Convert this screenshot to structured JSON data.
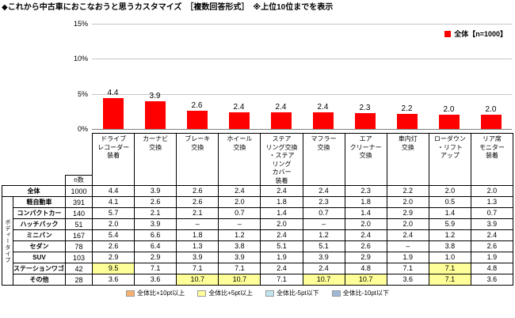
{
  "title": "◆これから中古車におこなおうと思うカスタマイズ　［複数回答形式］　※上位10位までを表示",
  "chart_data": {
    "type": "bar",
    "title": "これから中古車におこなおうと思うカスタマイズ　［複数回答形式］　※上位10位までを表示",
    "categories": [
      "ドライブレコーダー装着",
      "カーナビ交換",
      "ブレーキ交換",
      "ホイール交換",
      "ステアリング交換・ステアリングカバー装着",
      "マフラー交換",
      "エアクリーナー交換",
      "車内灯交換",
      "ローダウン・リフトアップ",
      "リア席モニター装着"
    ],
    "values": [
      4.4,
      3.9,
      2.6,
      2.4,
      2.4,
      2.4,
      2.3,
      2.2,
      2.0,
      2.0
    ],
    "xlabel": "",
    "ylabel": "",
    "ylim": [
      0,
      15
    ],
    "yticks": [
      "15%",
      "10%",
      "5%",
      "0%"
    ],
    "grid": true,
    "legend_label": "全体【n=1000】",
    "legend_position": "top-right",
    "bar_color": "#ff0000",
    "value_labels": true
  },
  "table": {
    "n_header": "n数",
    "group_label": "ボディータイプ",
    "col_headers": [
      "ドライブ\nレコーダー\n装着",
      "カーナビ\n交換",
      "ブレーキ\n交換",
      "ホイール\n交換",
      "ステア\nリング交換\n・ステア\nリング\nカバー\n装着",
      "マフラー\n交換",
      "エア\nクリーナー\n交換",
      "車内灯\n交換",
      "ローダウン\n・リフト\nアップ",
      "リア席\nモニター\n装着"
    ],
    "rows": [
      {
        "label": "全体",
        "n": "1000",
        "values": [
          "4.4",
          "3.9",
          "2.6",
          "2.4",
          "2.4",
          "2.4",
          "2.3",
          "2.2",
          "2.0",
          "2.0"
        ]
      },
      {
        "label": "軽自動車",
        "n": "391",
        "values": [
          "4.1",
          "2.6",
          "2.6",
          "2.0",
          "1.8",
          "2.3",
          "1.8",
          "2.0",
          "0.5",
          "1.3"
        ]
      },
      {
        "label": "コンパクトカー",
        "n": "140",
        "values": [
          "5.7",
          "2.1",
          "2.1",
          "0.7",
          "1.4",
          "0.7",
          "1.4",
          "2.9",
          "1.4",
          "0.7"
        ]
      },
      {
        "label": "ハッチバック",
        "n": "51",
        "values": [
          "2.0",
          "3.9",
          "–",
          "–",
          "2.0",
          "–",
          "2.0",
          "2.0",
          "5.9",
          "3.9"
        ]
      },
      {
        "label": "ミニバン",
        "n": "167",
        "values": [
          "5.4",
          "6.6",
          "1.8",
          "1.2",
          "2.4",
          "1.2",
          "2.4",
          "2.4",
          "1.2",
          "2.4"
        ]
      },
      {
        "label": "セダン",
        "n": "78",
        "values": [
          "2.6",
          "6.4",
          "1.3",
          "3.8",
          "5.1",
          "5.1",
          "2.6",
          "–",
          "3.8",
          "2.6"
        ]
      },
      {
        "label": "SUV",
        "n": "103",
        "values": [
          "2.9",
          "2.9",
          "3.9",
          "3.9",
          "1.9",
          "3.9",
          "2.9",
          "1.9",
          "1.0",
          "1.9"
        ]
      },
      {
        "label": "ステーションワゴン",
        "n": "42",
        "values": [
          "9.5",
          "7.1",
          "7.1",
          "7.1",
          "2.4",
          "2.4",
          "4.8",
          "7.1",
          "7.1",
          "4.8"
        ]
      },
      {
        "label": "その他",
        "n": "28",
        "values": [
          "3.6",
          "3.6",
          "10.7",
          "10.7",
          "7.1",
          "10.7",
          "10.7",
          "3.6",
          "7.1",
          "3.6"
        ]
      }
    ]
  },
  "bottom_legend": {
    "items": [
      {
        "label": "全体比+10pt以上",
        "color": "#f9b170"
      },
      {
        "label": "全体比+5pt以上",
        "color": "#ffff99"
      },
      {
        "label": "全体比-5pt以下",
        "color": "#bfe4f0"
      },
      {
        "label": "全体比-10pt以下",
        "color": "#a0b8d8"
      }
    ]
  }
}
